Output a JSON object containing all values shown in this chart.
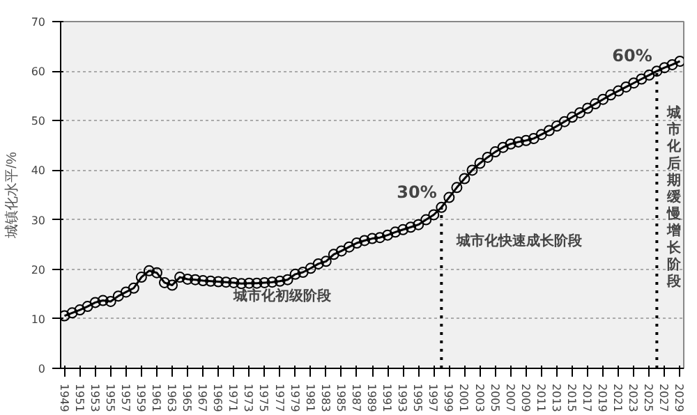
{
  "chart_data": {
    "type": "line",
    "ylabel": "城镇化水平/%",
    "x": [
      1949,
      1950,
      1951,
      1952,
      1953,
      1954,
      1955,
      1956,
      1957,
      1958,
      1959,
      1960,
      1961,
      1962,
      1963,
      1964,
      1965,
      1966,
      1967,
      1968,
      1969,
      1970,
      1971,
      1972,
      1973,
      1974,
      1975,
      1976,
      1977,
      1978,
      1979,
      1980,
      1981,
      1982,
      1983,
      1984,
      1985,
      1986,
      1987,
      1988,
      1989,
      1990,
      1991,
      1992,
      1993,
      1994,
      1995,
      1996,
      1997,
      1998,
      1999,
      2000,
      2001,
      2002,
      2003,
      2004,
      2005,
      2006,
      2007,
      2008,
      2009,
      2010,
      2011,
      2012,
      2013,
      2014,
      2015,
      2016,
      2017,
      2018,
      2019,
      2020,
      2021,
      2022,
      2023,
      2024,
      2025,
      2026,
      2027,
      2028,
      2029
    ],
    "series": [
      {
        "color": "#000000",
        "values": [
          10.6,
          11.2,
          11.8,
          12.5,
          13.3,
          13.7,
          13.5,
          14.6,
          15.4,
          16.2,
          18.4,
          19.7,
          19.3,
          17.3,
          16.8,
          18.4,
          18.0,
          17.9,
          17.7,
          17.6,
          17.5,
          17.4,
          17.3,
          17.1,
          17.2,
          17.2,
          17.3,
          17.4,
          17.6,
          17.9,
          19.0,
          19.4,
          20.2,
          21.1,
          21.6,
          23.0,
          23.7,
          24.5,
          25.3,
          25.8,
          26.2,
          26.4,
          26.9,
          27.5,
          28.0,
          28.5,
          29.0,
          30.0,
          31.0,
          32.5,
          34.5,
          36.5,
          38.3,
          40.0,
          41.4,
          42.6,
          43.7,
          44.6,
          45.3,
          45.7,
          46.0,
          46.4,
          47.2,
          48.0,
          48.9,
          49.8,
          50.7,
          51.6,
          52.5,
          53.4,
          54.3,
          55.2,
          56.0,
          56.8,
          57.6,
          58.4,
          59.2,
          60.0,
          60.7,
          61.3,
          62.0
        ]
      }
    ],
    "xlim": [
      1948.5,
      2029.5
    ],
    "xticks": [
      1949,
      1951,
      1953,
      1955,
      1957,
      1959,
      1961,
      1963,
      1965,
      1967,
      1969,
      1971,
      1973,
      1975,
      1977,
      1979,
      1981,
      1983,
      1985,
      1987,
      1989,
      1991,
      1993,
      1995,
      1997,
      1999,
      2001,
      2003,
      2005,
      2007,
      2009,
      2011,
      2013,
      2015,
      2017,
      2019,
      2021,
      2023,
      2025,
      2027,
      2029
    ],
    "ylim": [
      0,
      70
    ],
    "yticks": [
      0,
      10,
      20,
      30,
      40,
      50,
      60,
      70
    ],
    "grid": "y",
    "marker": "circle",
    "line_style": "solid",
    "ref_lines": [
      {
        "axis": "x",
        "value": 1998,
        "color": "#000000",
        "line_style": "dotted"
      },
      {
        "axis": "x",
        "value": 2026,
        "color": "#000000",
        "line_style": "dotted"
      }
    ],
    "annotations": [
      {
        "text": "30%",
        "x": 1998,
        "y": 32.5
      },
      {
        "text": "60%",
        "x": 2026,
        "y": 60.0
      },
      "城市化初级阶段",
      "城市化快速成长阶段",
      "城市化后期缓慢增长阶段"
    ]
  }
}
